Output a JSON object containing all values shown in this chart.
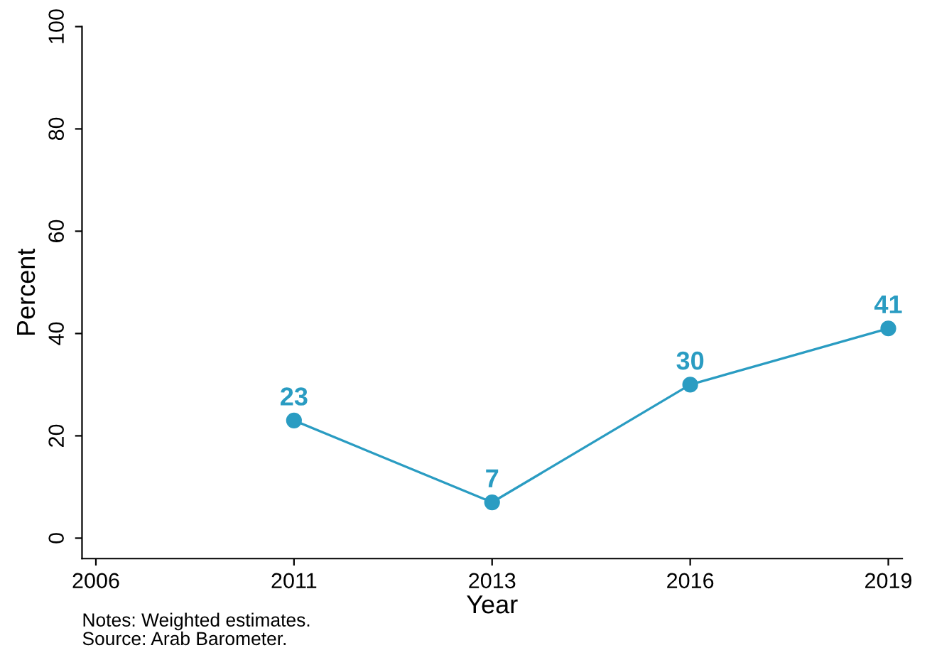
{
  "chart_data": {
    "type": "line",
    "xlabel": "Year",
    "ylabel": "Percent",
    "categories": [
      "2006",
      "2011",
      "2013",
      "2016",
      "2019"
    ],
    "series": [
      {
        "color": "#2a9cc2",
        "values": [
          null,
          23,
          7,
          30,
          41
        ]
      }
    ],
    "ylim": [
      -4,
      100
    ],
    "yticks": [
      0,
      20,
      40,
      60,
      80,
      100
    ],
    "marker": "circle",
    "line_style": "solid",
    "data_labels": true,
    "grid": false,
    "legend": false,
    "annotations": [
      "Notes: Weighted estimates.",
      "Source: Arab Barometer."
    ]
  }
}
